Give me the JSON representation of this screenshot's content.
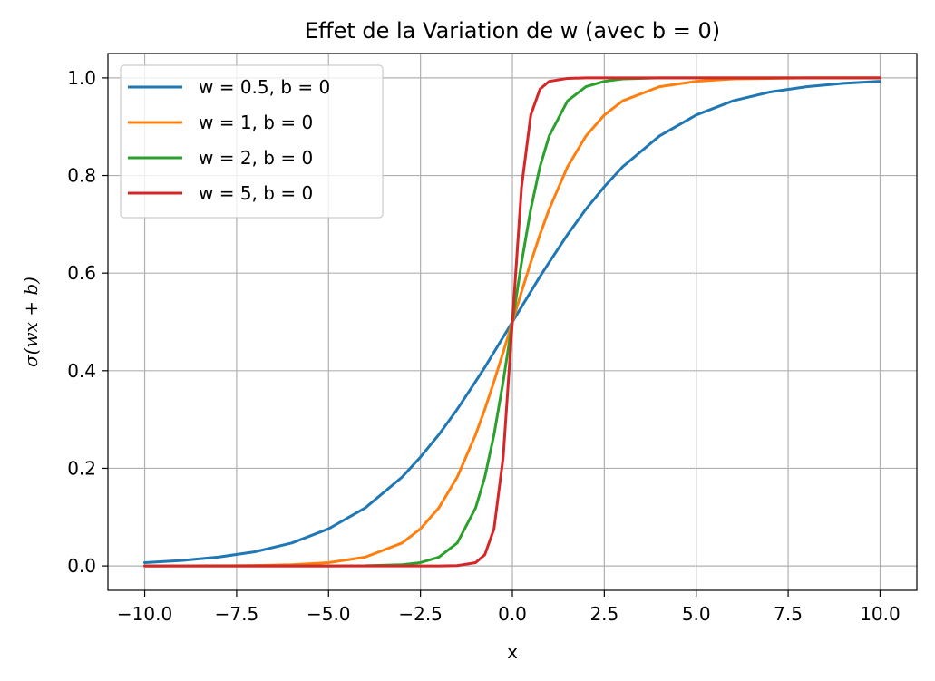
{
  "chart_data": {
    "type": "line",
    "title": "Effet de la Variation de w (avec b = 0)",
    "xlabel": "x",
    "ylabel": "σ(wx + b)",
    "xlim": [
      -11.0,
      11.0
    ],
    "ylim": [
      -0.05,
      1.05
    ],
    "xticks": [
      -10.0,
      -7.5,
      -5.0,
      -2.5,
      0.0,
      2.5,
      5.0,
      7.5,
      10.0
    ],
    "xtick_labels": [
      "−10.0",
      "−7.5",
      "−5.0",
      "−2.5",
      "0.0",
      "2.5",
      "5.0",
      "7.5",
      "10.0"
    ],
    "yticks": [
      0.0,
      0.2,
      0.4,
      0.6,
      0.8,
      1.0
    ],
    "ytick_labels": [
      "0.0",
      "0.2",
      "0.4",
      "0.6",
      "0.8",
      "1.0"
    ],
    "grid": true,
    "legend_position": "upper-left",
    "x": [
      -10,
      -9,
      -8,
      -7,
      -6,
      -5,
      -4,
      -3,
      -2.5,
      -2,
      -1.5,
      -1,
      -0.75,
      -0.5,
      -0.25,
      0,
      0.25,
      0.5,
      0.75,
      1,
      1.5,
      2,
      2.5,
      3,
      4,
      5,
      6,
      7,
      8,
      9,
      10
    ],
    "series": [
      {
        "name": "w = 0.5, b = 0",
        "color": "#1f77b4",
        "values": [
          0.0067,
          0.011,
          0.018,
          0.029,
          0.047,
          0.076,
          0.119,
          0.182,
          0.223,
          0.269,
          0.321,
          0.378,
          0.407,
          0.438,
          0.469,
          0.5,
          0.531,
          0.562,
          0.593,
          0.622,
          0.679,
          0.731,
          0.777,
          0.818,
          0.881,
          0.924,
          0.953,
          0.971,
          0.982,
          0.989,
          0.993
        ]
      },
      {
        "name": "w = 1, b = 0",
        "color": "#ff7f0e",
        "values": [
          0.0,
          0.0001,
          0.0003,
          0.0009,
          0.0025,
          0.0067,
          0.018,
          0.047,
          0.076,
          0.119,
          0.182,
          0.269,
          0.321,
          0.378,
          0.438,
          0.5,
          0.562,
          0.622,
          0.679,
          0.731,
          0.818,
          0.881,
          0.924,
          0.953,
          0.982,
          0.993,
          0.998,
          0.999,
          1.0,
          1.0,
          1.0
        ]
      },
      {
        "name": "w = 2, b = 0",
        "color": "#2ca02c",
        "values": [
          0.0,
          0.0,
          0.0,
          0.0,
          0.0,
          0.0,
          0.0003,
          0.0025,
          0.0067,
          0.018,
          0.047,
          0.119,
          0.182,
          0.269,
          0.378,
          0.5,
          0.622,
          0.731,
          0.818,
          0.881,
          0.953,
          0.982,
          0.993,
          0.998,
          1.0,
          1.0,
          1.0,
          1.0,
          1.0,
          1.0,
          1.0
        ]
      },
      {
        "name": "w = 5, b = 0",
        "color": "#d62728",
        "values": [
          0.0,
          0.0,
          0.0,
          0.0,
          0.0,
          0.0,
          0.0,
          0.0,
          0.0,
          0.0,
          0.0006,
          0.0067,
          0.023,
          0.076,
          0.223,
          0.5,
          0.777,
          0.924,
          0.977,
          0.993,
          0.999,
          1.0,
          1.0,
          1.0,
          1.0,
          1.0,
          1.0,
          1.0,
          1.0,
          1.0,
          1.0
        ]
      }
    ]
  }
}
